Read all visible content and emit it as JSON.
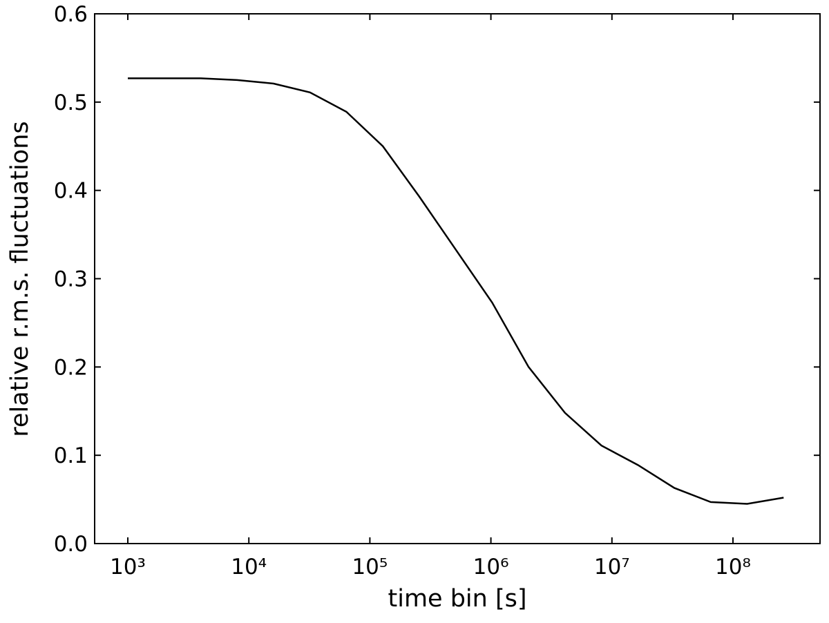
{
  "chart_data": {
    "type": "line",
    "x_label": "time bin [s]",
    "y_label": "relative r.m.s. fluctuations",
    "x_scale": "log",
    "x": [
      1000,
      2000,
      4000,
      8000,
      16000,
      32000,
      64000,
      128000,
      256000,
      512000,
      1024000,
      2048000,
      4096000,
      8192000,
      16384000,
      32768000,
      65536000,
      131072000,
      262144000
    ],
    "series": [
      {
        "color": "#000000",
        "values": [
          0.527,
          0.527,
          0.527,
          0.525,
          0.521,
          0.511,
          0.489,
          0.45,
          0.393,
          0.333,
          0.273,
          0.2,
          0.148,
          0.111,
          0.089,
          0.063,
          0.047,
          0.045,
          0.052
        ]
      }
    ],
    "xlim": [
      532,
      524000000
    ],
    "ylim": [
      0,
      0.6
    ],
    "xticks": [
      {
        "value": 1000,
        "label": "10³"
      },
      {
        "value": 10000,
        "label": "10⁴"
      },
      {
        "value": 100000,
        "label": "10⁵"
      },
      {
        "value": 1000000,
        "label": "10⁶"
      },
      {
        "value": 10000000,
        "label": "10⁷"
      },
      {
        "value": 100000000,
        "label": "10⁸"
      }
    ],
    "yticks": [
      {
        "value": 0,
        "label": "0.0"
      },
      0.1,
      0.2,
      0.3,
      0.4,
      0.5,
      0.6
    ]
  }
}
